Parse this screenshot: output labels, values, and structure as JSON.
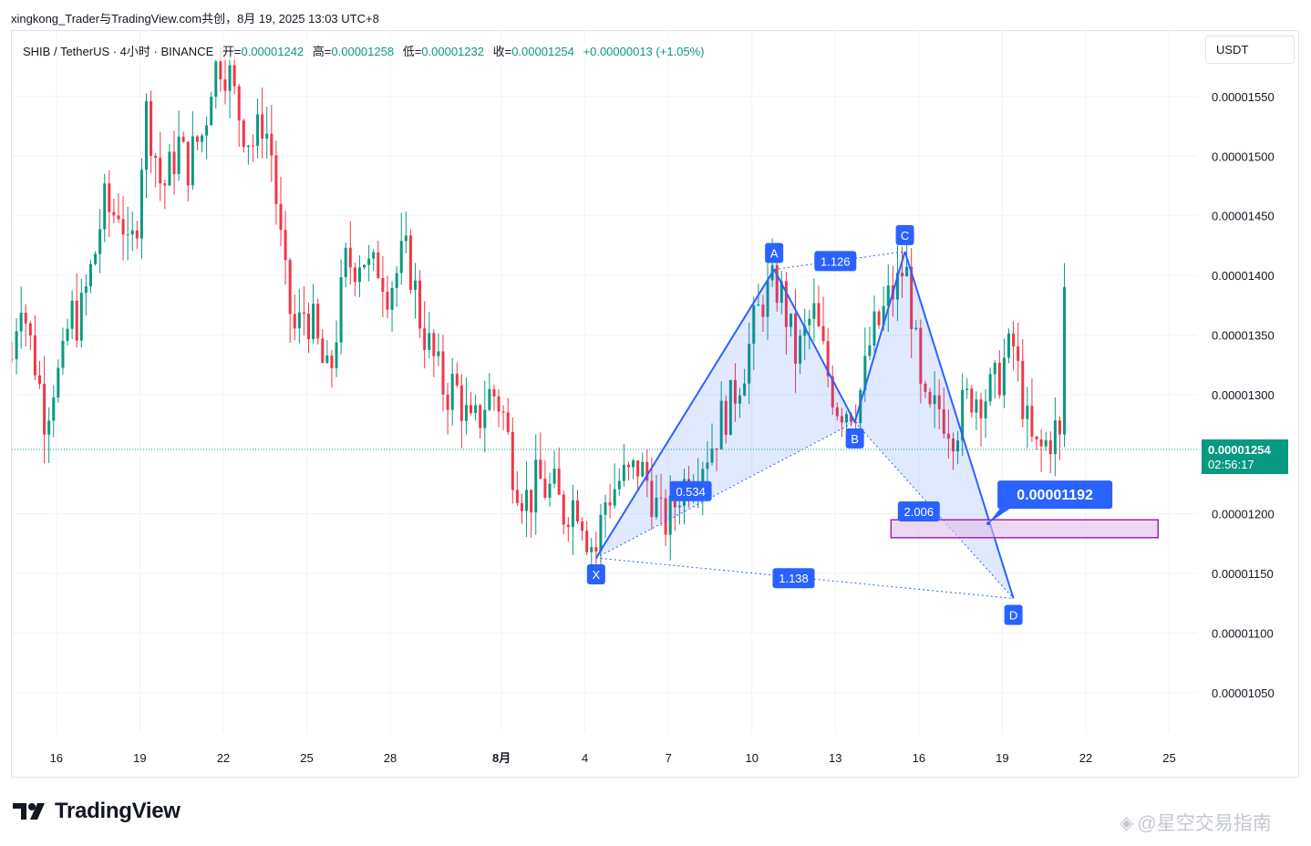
{
  "header": {
    "text": "xingkong_Trader与TradingView.com共创，8月 19, 2025 13:03 UTC+8"
  },
  "legend": {
    "symbol": "SHIB / TetherUS · 4小时 · BINANCE",
    "open_label": "开=",
    "open": "0.00001242",
    "high_label": "高=",
    "high": "0.00001258",
    "low_label": "低=",
    "low": "0.00001232",
    "close_label": "收=",
    "close": "0.00001254",
    "change": "+0.00000013 (+1.05%)"
  },
  "currency": "USDT",
  "colors": {
    "up": "#089981",
    "down": "#f23645",
    "pattern_line": "#2962ff",
    "pattern_fill": "#2962ff",
    "zone_border": "#9c27b0",
    "zone_fill": "#e1bee7",
    "price_tag": "#089981",
    "label_bg": "#2962ff"
  },
  "footer": {
    "brand": "TradingView",
    "logo_icon": "tradingview-logo-icon"
  },
  "watermark": {
    "text": "@星空交易指南",
    "icon": "diamond-icon"
  },
  "chart_data": {
    "type": "candlestick",
    "y_axis": {
      "ylim": [
        1.02e-05,
        1.605e-05
      ],
      "ticks": [
        "0.00001550",
        "0.00001500",
        "0.00001450",
        "0.00001400",
        "0.00001350",
        "0.00001300",
        "0.00001200",
        "0.00001150",
        "0.00001100",
        "0.00001050"
      ],
      "tick_values": [
        1.55e-05,
        1.5e-05,
        1.45e-05,
        1.4e-05,
        1.35e-05,
        1.3e-05,
        1.2e-05,
        1.15e-05,
        1.1e-05,
        1.05e-05
      ]
    },
    "x_axis": {
      "xlim": [
        14.4,
        57.0
      ],
      "tick_labels": [
        "16",
        "19",
        "22",
        "25",
        "28",
        "8月",
        "4",
        "7",
        "10",
        "13",
        "16",
        "19",
        "22",
        "25"
      ],
      "tick_days": [
        16,
        19,
        22,
        25,
        28,
        32,
        35,
        38,
        41,
        44,
        47,
        50,
        53,
        56
      ],
      "note_day_axis": "days from July 1, 2025; 32 = Aug 1"
    },
    "current_price": {
      "value": 1.254e-05,
      "label": "0.00001254",
      "countdown": "02:56:17"
    },
    "harmonic_pattern": {
      "points": [
        {
          "name": "X",
          "day": 35.4,
          "price": 1.163e-05
        },
        {
          "name": "A",
          "day": 41.8,
          "price": 1.405e-05
        },
        {
          "name": "B",
          "day": 44.7,
          "price": 1.277e-05
        },
        {
          "name": "C",
          "day": 46.5,
          "price": 1.42e-05
        },
        {
          "name": "D",
          "day": 50.4,
          "price": 1.129e-05
        }
      ],
      "ratios": [
        {
          "label": "1.126",
          "day": 44.0,
          "price": 1.412e-05
        },
        {
          "label": "0.534",
          "day": 38.8,
          "price": 1.219e-05
        },
        {
          "label": "2.006",
          "day": 47.0,
          "price": 1.202e-05
        },
        {
          "label": "1.138",
          "day": 42.5,
          "price": 1.146e-05
        }
      ]
    },
    "target_zone": {
      "day_start": 46.0,
      "day_end": 55.6,
      "price_low": 1.18e-05,
      "price_high": 1.195e-05
    },
    "callout": {
      "label": "0.00001192",
      "anchor_day": 49.5,
      "anchor_price": 1.192e-05
    },
    "ohlc_samples": [
      {
        "day": 14.4,
        "price": 1.33e-05
      },
      {
        "day": 14.7,
        "price": 1.39e-05
      },
      {
        "day": 15.0,
        "price": 1.35e-05
      },
      {
        "day": 15.3,
        "price": 1.32e-05
      },
      {
        "day": 15.6,
        "price": 1.28e-05
      },
      {
        "day": 15.9,
        "price": 1.31e-05
      },
      {
        "day": 16.2,
        "price": 1.32e-05
      },
      {
        "day": 16.5,
        "price": 1.37e-05
      },
      {
        "day": 16.8,
        "price": 1.36e-05
      },
      {
        "day": 17.1,
        "price": 1.39e-05
      },
      {
        "day": 17.4,
        "price": 1.42e-05
      },
      {
        "day": 17.7,
        "price": 1.46e-05
      },
      {
        "day": 18.0,
        "price": 1.45e-05
      },
      {
        "day": 18.3,
        "price": 1.46e-05
      },
      {
        "day": 18.6,
        "price": 1.41e-05
      },
      {
        "day": 18.9,
        "price": 1.45e-05
      },
      {
        "day": 19.2,
        "price": 1.54e-05
      },
      {
        "day": 19.5,
        "price": 1.51e-05
      },
      {
        "day": 19.8,
        "price": 1.47e-05
      },
      {
        "day": 20.1,
        "price": 1.49e-05
      },
      {
        "day": 20.4,
        "price": 1.51e-05
      },
      {
        "day": 20.7,
        "price": 1.49e-05
      },
      {
        "day": 21.0,
        "price": 1.51e-05
      },
      {
        "day": 21.3,
        "price": 1.52e-05
      },
      {
        "day": 21.6,
        "price": 1.57e-05
      },
      {
        "day": 21.9,
        "price": 1.58e-05
      },
      {
        "day": 22.2,
        "price": 1.57e-05
      },
      {
        "day": 22.5,
        "price": 1.54e-05
      },
      {
        "day": 22.8,
        "price": 1.52e-05
      },
      {
        "day": 23.1,
        "price": 1.51e-05
      },
      {
        "day": 23.4,
        "price": 1.53e-05
      },
      {
        "day": 23.7,
        "price": 1.51e-05
      },
      {
        "day": 24.0,
        "price": 1.44e-05
      },
      {
        "day": 24.3,
        "price": 1.38e-05
      },
      {
        "day": 24.6,
        "price": 1.35e-05
      },
      {
        "day": 24.9,
        "price": 1.37e-05
      },
      {
        "day": 25.2,
        "price": 1.36e-05
      },
      {
        "day": 25.5,
        "price": 1.33e-05
      },
      {
        "day": 25.8,
        "price": 1.31e-05
      },
      {
        "day": 26.1,
        "price": 1.36e-05
      },
      {
        "day": 26.4,
        "price": 1.41e-05
      },
      {
        "day": 26.7,
        "price": 1.41e-05
      },
      {
        "day": 27.0,
        "price": 1.42e-05
      },
      {
        "day": 27.3,
        "price": 1.4e-05
      },
      {
        "day": 27.6,
        "price": 1.41e-05
      },
      {
        "day": 27.9,
        "price": 1.39e-05
      },
      {
        "day": 28.2,
        "price": 1.4e-05
      },
      {
        "day": 28.5,
        "price": 1.42e-05
      },
      {
        "day": 28.8,
        "price": 1.4e-05
      },
      {
        "day": 29.1,
        "price": 1.36e-05
      },
      {
        "day": 29.4,
        "price": 1.34e-05
      },
      {
        "day": 29.7,
        "price": 1.32e-05
      },
      {
        "day": 30.0,
        "price": 1.3e-05
      },
      {
        "day": 30.3,
        "price": 1.31e-05
      },
      {
        "day": 30.6,
        "price": 1.29e-05
      },
      {
        "day": 30.9,
        "price": 1.27e-05
      },
      {
        "day": 31.2,
        "price": 1.28e-05
      },
      {
        "day": 31.5,
        "price": 1.3e-05
      },
      {
        "day": 31.8,
        "price": 1.3e-05
      },
      {
        "day": 32.1,
        "price": 1.28e-05
      },
      {
        "day": 32.4,
        "price": 1.24e-05
      },
      {
        "day": 32.7,
        "price": 1.22e-05
      },
      {
        "day": 33.0,
        "price": 1.21e-05
      },
      {
        "day": 33.3,
        "price": 1.23e-05
      },
      {
        "day": 33.6,
        "price": 1.22e-05
      },
      {
        "day": 33.9,
        "price": 1.22e-05
      },
      {
        "day": 34.2,
        "price": 1.2e-05
      },
      {
        "day": 34.5,
        "price": 1.21e-05
      },
      {
        "day": 34.8,
        "price": 1.21e-05
      },
      {
        "day": 35.1,
        "price": 1.18e-05
      },
      {
        "day": 35.4,
        "price": 1.17e-05
      },
      {
        "day": 35.7,
        "price": 1.21e-05
      },
      {
        "day": 36.0,
        "price": 1.22e-05
      },
      {
        "day": 36.3,
        "price": 1.23e-05
      },
      {
        "day": 36.6,
        "price": 1.23e-05
      },
      {
        "day": 36.9,
        "price": 1.24e-05
      },
      {
        "day": 37.2,
        "price": 1.23e-05
      },
      {
        "day": 37.5,
        "price": 1.21e-05
      },
      {
        "day": 37.8,
        "price": 1.19e-05
      },
      {
        "day": 38.1,
        "price": 1.2e-05
      },
      {
        "day": 38.4,
        "price": 1.22e-05
      },
      {
        "day": 38.7,
        "price": 1.23e-05
      },
      {
        "day": 39.0,
        "price": 1.24e-05
      },
      {
        "day": 39.3,
        "price": 1.25e-05
      },
      {
        "day": 39.6,
        "price": 1.26e-05
      },
      {
        "day": 39.9,
        "price": 1.28e-05
      },
      {
        "day": 40.2,
        "price": 1.29e-05
      },
      {
        "day": 40.5,
        "price": 1.31e-05
      },
      {
        "day": 40.8,
        "price": 1.33e-05
      },
      {
        "day": 41.1,
        "price": 1.36e-05
      },
      {
        "day": 41.4,
        "price": 1.38e-05
      },
      {
        "day": 41.7,
        "price": 1.39e-05
      },
      {
        "day": 42.0,
        "price": 1.39e-05
      },
      {
        "day": 42.3,
        "price": 1.36e-05
      },
      {
        "day": 42.6,
        "price": 1.33e-05
      },
      {
        "day": 42.9,
        "price": 1.35e-05
      },
      {
        "day": 43.2,
        "price": 1.37e-05
      },
      {
        "day": 43.5,
        "price": 1.34e-05
      },
      {
        "day": 43.8,
        "price": 1.31e-05
      },
      {
        "day": 44.1,
        "price": 1.29e-05
      },
      {
        "day": 44.4,
        "price": 1.29e-05
      },
      {
        "day": 44.7,
        "price": 1.29e-05
      },
      {
        "day": 45.0,
        "price": 1.31e-05
      },
      {
        "day": 45.3,
        "price": 1.35e-05
      },
      {
        "day": 45.6,
        "price": 1.36e-05
      },
      {
        "day": 45.9,
        "price": 1.38e-05
      },
      {
        "day": 46.2,
        "price": 1.39e-05
      },
      {
        "day": 46.5,
        "price": 1.41e-05
      },
      {
        "day": 46.8,
        "price": 1.36e-05
      },
      {
        "day": 47.1,
        "price": 1.29e-05
      },
      {
        "day": 47.4,
        "price": 1.28e-05
      },
      {
        "day": 47.7,
        "price": 1.29e-05
      },
      {
        "day": 48.0,
        "price": 1.28e-05
      },
      {
        "day": 48.3,
        "price": 1.27e-05
      },
      {
        "day": 48.6,
        "price": 1.29e-05
      },
      {
        "day": 48.9,
        "price": 1.3e-05
      },
      {
        "day": 49.2,
        "price": 1.3e-05
      },
      {
        "day": 49.5,
        "price": 1.3e-05
      },
      {
        "day": 49.8,
        "price": 1.31e-05
      },
      {
        "day": 50.1,
        "price": 1.33e-05
      },
      {
        "day": 50.4,
        "price": 1.34e-05
      },
      {
        "day": 50.7,
        "price": 1.3e-05
      },
      {
        "day": 51.0,
        "price": 1.26e-05
      },
      {
        "day": 51.3,
        "price": 1.25e-05
      },
      {
        "day": 51.6,
        "price": 1.26e-05
      },
      {
        "day": 51.9,
        "price": 1.27e-05
      },
      {
        "day": 52.2,
        "price": 1.25e-05
      }
    ]
  }
}
